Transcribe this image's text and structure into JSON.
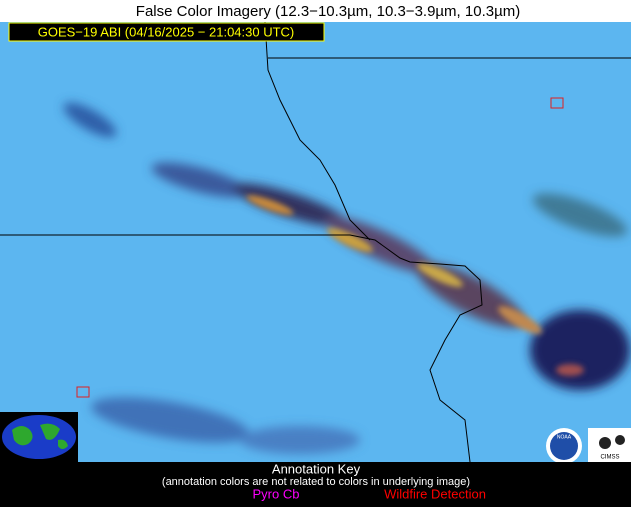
{
  "header": {
    "title": "False Color Imagery (12.3−10.3µm, 10.3−3.9µm, 10.3µm)",
    "timestamp": "GOES−19 ABI (04/16/2025 − 21:04:30 UTC)"
  },
  "logos": {
    "noaa": "NOAA",
    "cimss": "CIMSS"
  },
  "annotation_key": {
    "title": "Annotation Key",
    "note": "(annotation colors are not related to colors in underlying image)",
    "pyro_cb": "Pyro Cb",
    "wildfire": "Wildfire Detection"
  }
}
